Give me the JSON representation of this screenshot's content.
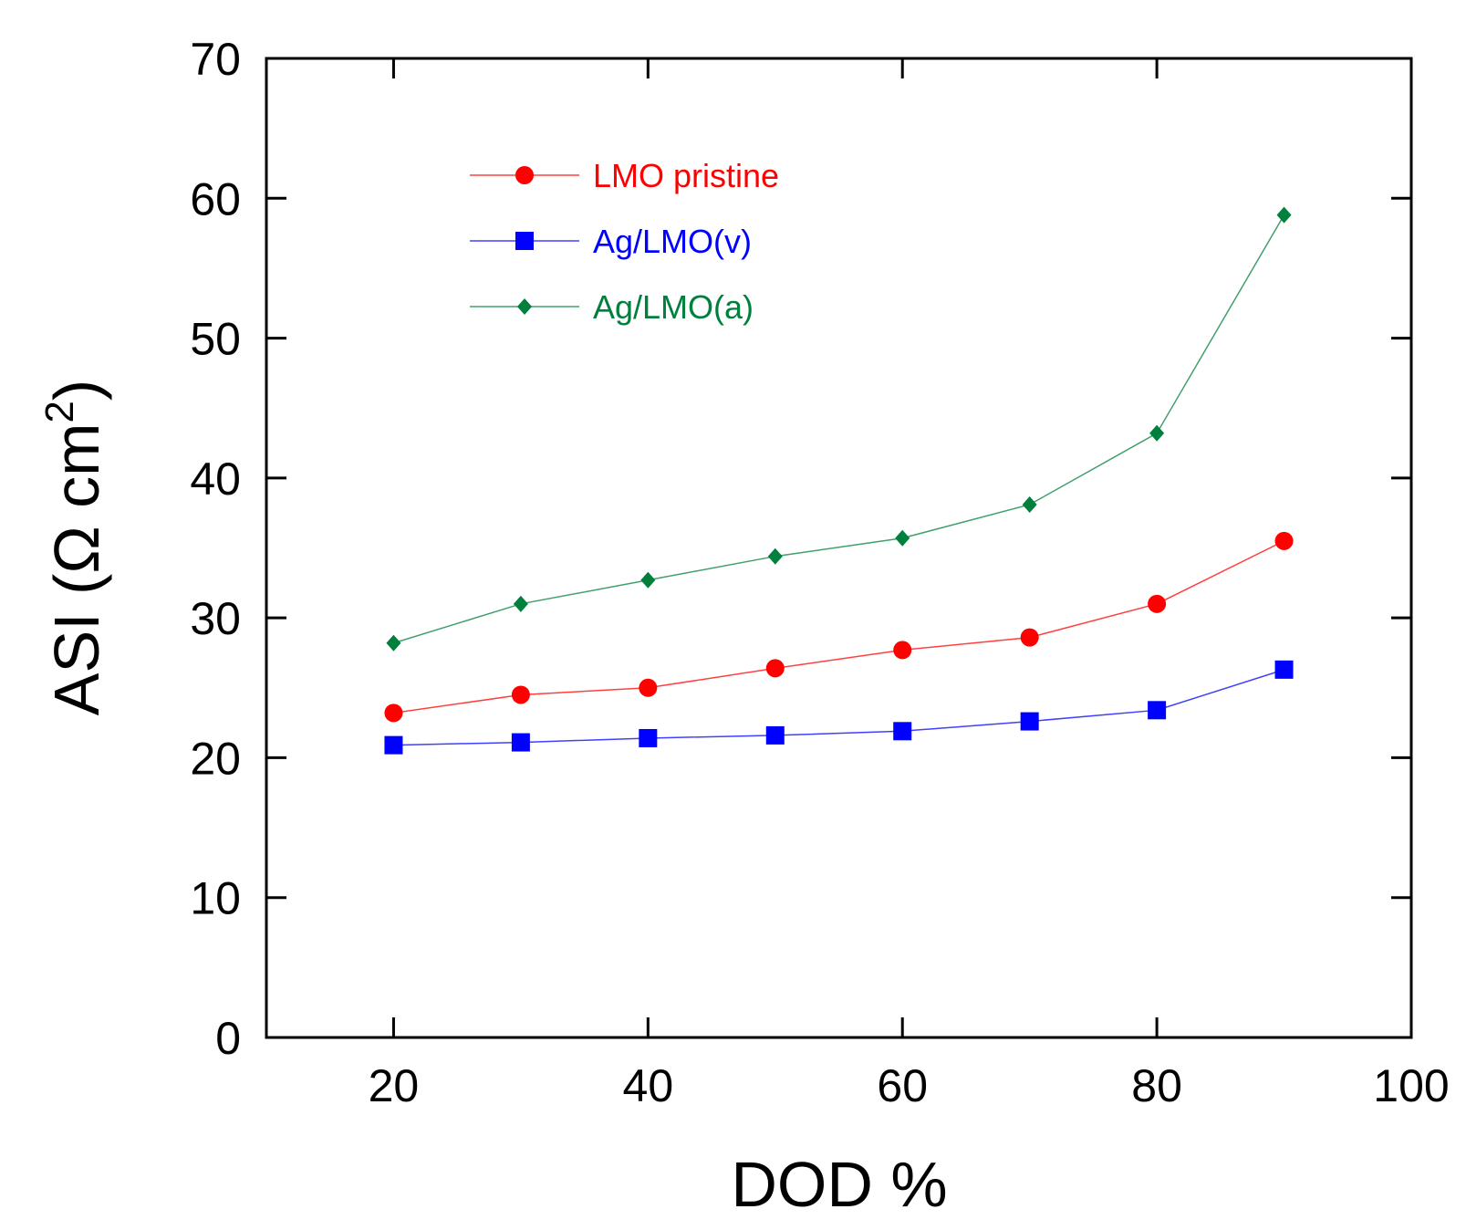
{
  "chart_data": {
    "type": "line",
    "title": "",
    "xlabel": "DOD %",
    "ylabel": {
      "main": "ASI (Ω cm",
      "superscript": "2",
      "close": ")"
    },
    "xlim": [
      10,
      100
    ],
    "ylim": [
      0,
      70
    ],
    "xticks": [
      20,
      40,
      60,
      80,
      100
    ],
    "yticks": [
      0,
      10,
      20,
      30,
      40,
      50,
      60,
      70
    ],
    "x": [
      20,
      30,
      40,
      50,
      60,
      70,
      80,
      90
    ],
    "legend_position": "top-left",
    "series": [
      {
        "name": "LMO pristine",
        "marker": "circle",
        "color": "#ff0000",
        "values": [
          23.2,
          24.5,
          25.0,
          26.4,
          27.7,
          28.6,
          31.0,
          35.5
        ]
      },
      {
        "name": "Ag/LMO(v)",
        "marker": "square",
        "color": "#0000ff",
        "values": [
          20.9,
          21.1,
          21.4,
          21.6,
          21.9,
          22.6,
          23.4,
          26.3
        ]
      },
      {
        "name": "Ag/LMO(a)",
        "marker": "diamond",
        "color": "#00803c",
        "values": [
          28.2,
          31.0,
          32.7,
          34.4,
          35.7,
          38.1,
          43.2,
          58.8
        ]
      }
    ]
  }
}
